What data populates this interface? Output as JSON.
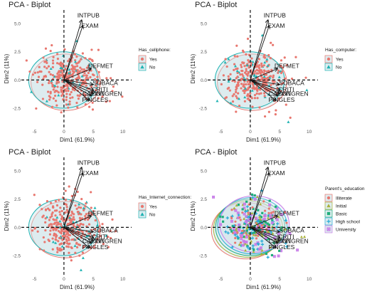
{
  "colors": {
    "red": "#e8776f",
    "teal": "#1fb3b3",
    "edu": [
      "#e8776f",
      "#a9b13a",
      "#1fae7a",
      "#22a9d6",
      "#c87de8"
    ],
    "ellipse_fill": "#cfe4e8",
    "arrow": "#111111"
  },
  "chart_data": [
    {
      "type": "scatter",
      "title": "PCA - Biplot",
      "xlabel": "Dim1 (61.9%)",
      "ylabel": "Dim2 (11%)",
      "xlim": [
        -7,
        11.5
      ],
      "ylim": [
        -4.2,
        6.2
      ],
      "xticks": [
        "-5",
        "0",
        "5",
        "10"
      ],
      "yticks": [
        "5.0",
        "2.5",
        "0.0",
        "-2.5"
      ],
      "legend": {
        "title": "Has_cellphone:",
        "entries": [
          "Yes",
          "No"
        ],
        "markers": [
          "circle",
          "triangle"
        ],
        "position": "right"
      },
      "vectors": [
        {
          "label": "INTPUB",
          "x": 3.0,
          "y": 5.3
        },
        {
          "label": "EXAM",
          "x": 3.2,
          "y": 4.8
        },
        {
          "label": "DEFMET",
          "x": 4.6,
          "y": 1.0
        },
        {
          "label": "SOBACA",
          "x": 4.9,
          "y": -0.4
        },
        {
          "label": "CRITI",
          "x": 5.0,
          "y": -0.9
        },
        {
          "label": "CONGREN",
          "x": 5.0,
          "y": -1.2
        },
        {
          "label": "CAPINT",
          "x": 4.6,
          "y": -1.4
        },
        {
          "label": "PINGLES",
          "x": 4.3,
          "y": -1.8
        }
      ]
    },
    {
      "type": "scatter",
      "title": "PCA - Biplot",
      "xlabel": "Dim1 (61.9%)",
      "ylabel": "Dim2 (11%)",
      "xlim": [
        -7,
        11.5
      ],
      "ylim": [
        -4.2,
        6.2
      ],
      "xticks": [
        "-5",
        "0",
        "5",
        "10"
      ],
      "yticks": [
        "5.0",
        "2.5",
        "0.0",
        "-2.5"
      ],
      "legend": {
        "title": "Has_computer:",
        "entries": [
          "Yes",
          "No"
        ],
        "markers": [
          "circle",
          "triangle"
        ],
        "position": "right"
      },
      "vectors": [
        {
          "label": "INTPUB",
          "x": 3.0,
          "y": 5.3
        },
        {
          "label": "EXAM",
          "x": 3.2,
          "y": 4.8
        },
        {
          "label": "DEFMET",
          "x": 4.6,
          "y": 1.0
        },
        {
          "label": "SOBACA",
          "x": 4.9,
          "y": -0.4
        },
        {
          "label": "CRITI",
          "x": 5.0,
          "y": -0.9
        },
        {
          "label": "CONGREN",
          "x": 5.0,
          "y": -1.2
        },
        {
          "label": "CAPINT",
          "x": 4.6,
          "y": -1.4
        },
        {
          "label": "PINGLES",
          "x": 4.3,
          "y": -1.8
        }
      ]
    },
    {
      "type": "scatter",
      "title": "PCA - Biplot",
      "xlabel": "Dim1 (61.9%)",
      "ylabel": "Dim2 (11%)",
      "xlim": [
        -7,
        11.5
      ],
      "ylim": [
        -4.2,
        6.2
      ],
      "xticks": [
        "-5",
        "0",
        "5",
        "10"
      ],
      "yticks": [
        "5.0",
        "2.5",
        "0.0",
        "-2.5"
      ],
      "legend": {
        "title": "Has_Internet_connection:",
        "entries": [
          "Yes",
          "No"
        ],
        "markers": [
          "circle",
          "triangle"
        ],
        "position": "right"
      },
      "vectors": [
        {
          "label": "INTPUB",
          "x": 3.0,
          "y": 5.3
        },
        {
          "label": "EXAM",
          "x": 3.2,
          "y": 4.8
        },
        {
          "label": "DEFMET",
          "x": 4.6,
          "y": 1.0
        },
        {
          "label": "SOBACA",
          "x": 4.9,
          "y": -0.4
        },
        {
          "label": "CRITI",
          "x": 5.0,
          "y": -0.9
        },
        {
          "label": "CONGREN",
          "x": 5.0,
          "y": -1.2
        },
        {
          "label": "CAPINT",
          "x": 4.6,
          "y": -1.4
        },
        {
          "label": "PINGLES",
          "x": 4.3,
          "y": -1.8
        }
      ]
    },
    {
      "type": "scatter",
      "title": "PCA - Biplot",
      "xlabel": "Dim1 (61.9%)",
      "ylabel": "Dim2 (11%)",
      "xlim": [
        -7,
        11.5
      ],
      "ylim": [
        -4.2,
        6.2
      ],
      "xticks": [
        "-5",
        "0",
        "5",
        "10"
      ],
      "yticks": [
        "5.0",
        "2.5",
        "0.0",
        "-2.5"
      ],
      "legend": {
        "title": "Parent's_education",
        "entries": [
          "Illiterate",
          "Initial",
          "Basic",
          "High school",
          "University"
        ],
        "markers": [
          "circle",
          "triangle",
          "square",
          "plus",
          "boxcross"
        ],
        "position": "right"
      },
      "vectors": [
        {
          "label": "INTPUB",
          "x": 3.0,
          "y": 5.3
        },
        {
          "label": "EXAM",
          "x": 3.2,
          "y": 4.8
        },
        {
          "label": "DEFMET",
          "x": 4.6,
          "y": 1.0
        },
        {
          "label": "SOBACA",
          "x": 4.9,
          "y": -0.4
        },
        {
          "label": "CRITI",
          "x": 5.0,
          "y": -0.9
        },
        {
          "label": "CONGREN",
          "x": 5.0,
          "y": -1.2
        },
        {
          "label": "CAPINT",
          "x": 4.6,
          "y": -1.4
        },
        {
          "label": "PINGLES",
          "x": 4.3,
          "y": -1.8
        }
      ]
    }
  ]
}
